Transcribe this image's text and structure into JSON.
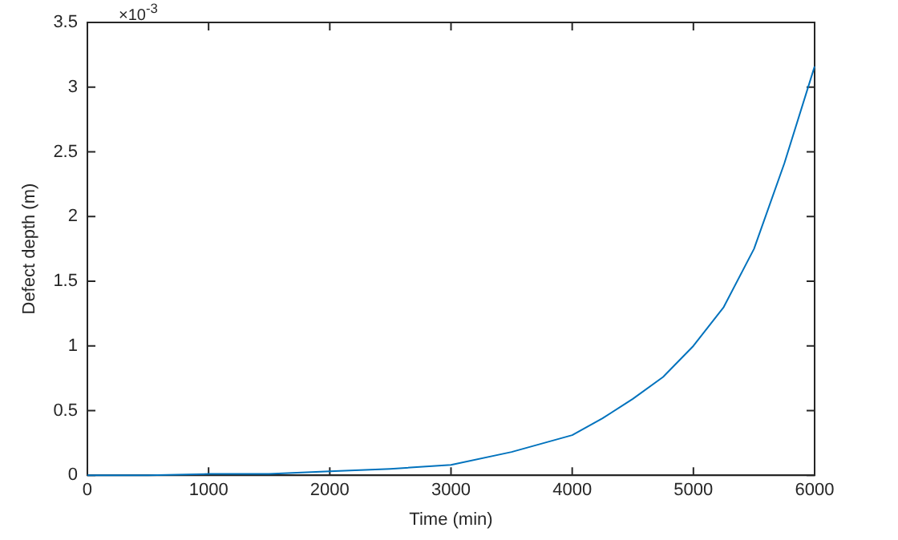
{
  "chart_data": {
    "type": "line",
    "xlabel": "Time (min)",
    "ylabel": "Defect depth (m)",
    "annotations": [
      "×10$^{-3}$"
    ],
    "x": [
      0,
      500,
      1000,
      1500,
      2000,
      2500,
      3000,
      3500,
      4000,
      4250,
      4500,
      4750,
      5000,
      5250,
      5500,
      5750,
      6000
    ],
    "series": [
      {
        "color": "#0072bd",
        "values": [
          0,
          0,
          0.01,
          0.01,
          0.03,
          0.05,
          0.08,
          0.18,
          0.31,
          0.44,
          0.59,
          0.76,
          1.0,
          1.3,
          1.75,
          2.41,
          3.16
        ]
      }
    ],
    "xlim": [
      0,
      6000
    ],
    "xticks": [
      0,
      1000,
      2000,
      3000,
      4000,
      5000,
      6000
    ],
    "ylim": [
      0,
      3.5
    ],
    "yticks": [
      0,
      0.5,
      1,
      1.5,
      2,
      2.5,
      3,
      3.5
    ],
    "grid": false,
    "legend": false,
    "marker": "none",
    "line_style": "solid"
  }
}
